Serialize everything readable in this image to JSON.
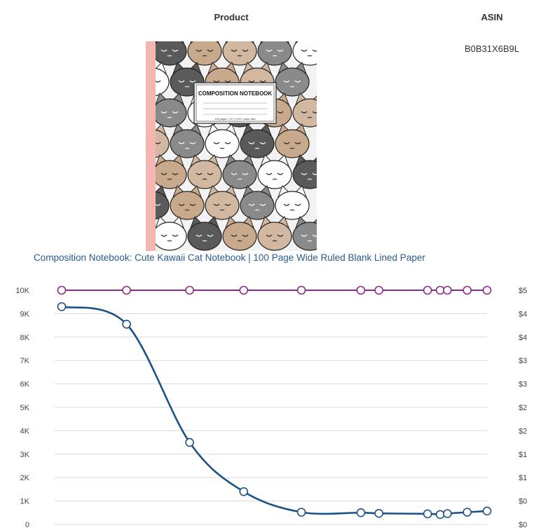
{
  "header": {
    "product": "Product",
    "asin": "ASIN"
  },
  "product": {
    "asin": "B0B31X6B9L",
    "title": "Composition Notebook: Cute Kawaii Cat Notebook | 100 Page Wide Ruled Blank Lined Paper",
    "cover": {
      "label": "COMPOSITION NOTEBOOK",
      "sublabel": "100 pages • 7.5\" x 9.25\" • wide ruled",
      "spine_color": "#f4b6b1",
      "cat_colors": [
        "#5a5a5a",
        "#d2b8a0",
        "#ffffff",
        "#c9a98c",
        "#8a8a8a"
      ]
    }
  },
  "chart_data": {
    "type": "line",
    "y_left": {
      "ticks": [
        "0",
        "1K",
        "2K",
        "3K",
        "4K",
        "5K",
        "6K",
        "7K",
        "8K",
        "9K",
        "10K"
      ],
      "ylim": [
        0,
        10000
      ]
    },
    "y_right": {
      "ticks": [
        "$0",
        "$0",
        "$1",
        "$1",
        "$2",
        "$2",
        "$3",
        "$3",
        "$4",
        "$4",
        "$5"
      ],
      "ylim": [
        0,
        5
      ]
    },
    "series": [
      {
        "axis": "right",
        "color": "#8b2a8b",
        "x": [
          0,
          3.6,
          7.1,
          10.1,
          13.3,
          16.6,
          17.6,
          20.3,
          21.0,
          21.4,
          22.5,
          23.6
        ],
        "values": [
          5,
          5,
          5,
          5,
          5,
          5,
          5,
          5,
          5,
          5,
          5,
          5
        ]
      },
      {
        "axis": "left",
        "color": "#1c5186",
        "x": [
          0,
          3.6,
          7.1,
          10.1,
          13.3,
          16.6,
          17.6,
          20.3,
          21.0,
          21.4,
          22.5,
          23.6
        ],
        "values": [
          9300,
          8550,
          3500,
          1400,
          520,
          500,
          470,
          450,
          420,
          460,
          520,
          570
        ]
      }
    ],
    "xlim": [
      0,
      23.6
    ]
  },
  "colors": {
    "grid": "#d8d8d8",
    "marker_fill": "#ffffff",
    "link": "#2a5a8c"
  }
}
